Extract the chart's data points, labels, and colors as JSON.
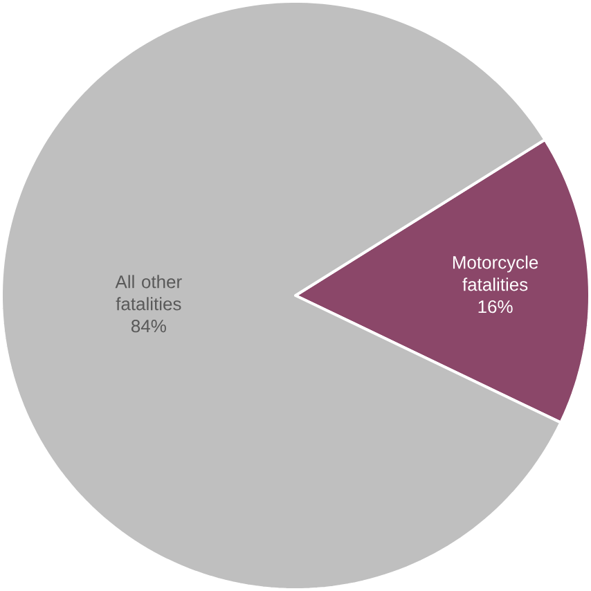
{
  "chart_data": {
    "type": "pie",
    "categories": [
      "Motorcycle fatalities",
      "All other fatalities"
    ],
    "values": [
      16,
      84
    ],
    "colors": [
      "#8b4769",
      "#bfbfbf"
    ],
    "value_labels": [
      "16%",
      "84%"
    ]
  }
}
